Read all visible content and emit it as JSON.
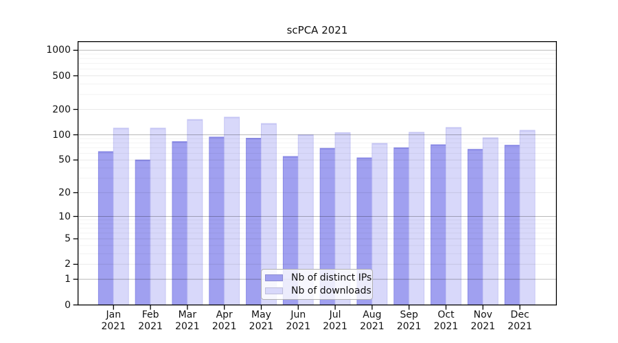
{
  "chart_data": {
    "type": "bar",
    "title": "scPCA 2021",
    "categories": [
      "Jan 2021",
      "Feb 2021",
      "Mar 2021",
      "Apr 2021",
      "May 2021",
      "Jun 2021",
      "Jul 2021",
      "Aug 2021",
      "Sep 2021",
      "Oct 2021",
      "Nov 2021",
      "Dec 2021"
    ],
    "series": [
      {
        "name": "Nb of distinct IPs",
        "color": "#a0a0f0",
        "edge_color": "#8a8ae6",
        "values": [
          63,
          50,
          83,
          94,
          91,
          55,
          69,
          53,
          70,
          76,
          67,
          75
        ]
      },
      {
        "name": "Nb of downloads",
        "color": "#d8d8fa",
        "edge_color": "#c6c6f4",
        "values": [
          120,
          120,
          152,
          162,
          136,
          100,
          106,
          79,
          107,
          122,
          92,
          113
        ]
      }
    ],
    "y_axis": {
      "scale": "log1p",
      "tick_values": [
        0,
        1,
        2,
        5,
        10,
        20,
        50,
        100,
        200,
        500,
        1000
      ],
      "tick_labels": [
        "0",
        "1",
        "2",
        "5",
        "10",
        "20",
        "50",
        "100",
        "200",
        "500",
        "1000"
      ],
      "max": 1000
    },
    "legend": {
      "location": "lower center"
    },
    "grid": true,
    "grid_strong_line_values": [
      1,
      10,
      100,
      1000
    ]
  },
  "colors": {
    "spine": "#000000",
    "grid_minor": "rgba(0,0,0,0.05)",
    "grid_major": "rgba(0,0,0,0.09)",
    "grid_strong": "rgba(0,0,0,0.28)",
    "text": "#111111",
    "background": "#ffffff"
  }
}
